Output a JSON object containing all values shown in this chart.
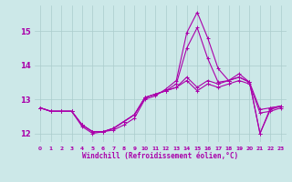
{
  "xlabel": "Windchill (Refroidissement éolien,°C)",
  "background_color": "#cce8e8",
  "line_color": "#aa00aa",
  "grid_color": "#aacccc",
  "xlim": [
    -0.5,
    23.5
  ],
  "ylim": [
    11.75,
    15.75
  ],
  "xticks": [
    0,
    1,
    2,
    3,
    4,
    5,
    6,
    7,
    8,
    9,
    10,
    11,
    12,
    13,
    14,
    15,
    16,
    17,
    18,
    19,
    20,
    21,
    22,
    23
  ],
  "yticks": [
    12,
    13,
    14,
    15
  ],
  "lines": [
    [
      12.75,
      12.65,
      12.65,
      12.65,
      12.2,
      12.0,
      12.05,
      12.1,
      12.25,
      12.45,
      13.0,
      13.1,
      13.3,
      13.55,
      14.95,
      15.55,
      14.8,
      13.9,
      13.55,
      13.65,
      13.5,
      12.0,
      12.7,
      12.8
    ],
    [
      12.75,
      12.65,
      12.65,
      12.65,
      12.25,
      12.05,
      12.05,
      12.15,
      12.35,
      12.55,
      13.05,
      13.15,
      13.25,
      13.45,
      14.5,
      15.1,
      14.2,
      13.5,
      13.55,
      13.75,
      13.5,
      12.0,
      12.75,
      12.8
    ],
    [
      12.75,
      12.65,
      12.65,
      12.65,
      12.25,
      12.05,
      12.05,
      12.15,
      12.35,
      12.55,
      13.05,
      13.15,
      13.25,
      13.35,
      13.65,
      13.35,
      13.55,
      13.45,
      13.55,
      13.65,
      13.5,
      12.7,
      12.75,
      12.8
    ],
    [
      12.75,
      12.65,
      12.65,
      12.65,
      12.25,
      12.05,
      12.05,
      12.15,
      12.35,
      12.55,
      13.05,
      13.15,
      13.25,
      13.35,
      13.55,
      13.25,
      13.45,
      13.35,
      13.45,
      13.55,
      13.45,
      12.6,
      12.65,
      12.75
    ]
  ]
}
